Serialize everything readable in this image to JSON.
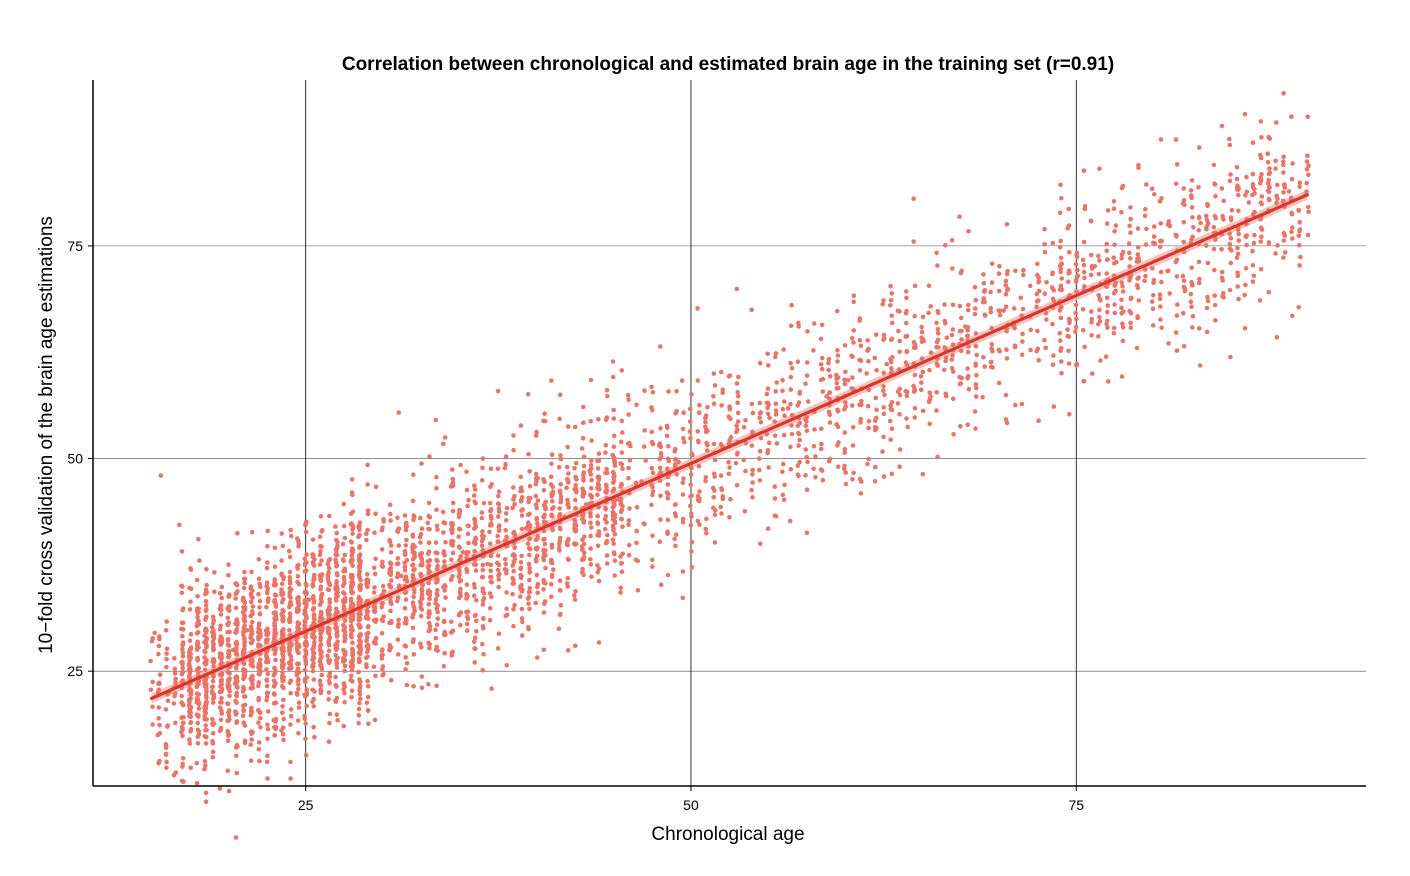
{
  "chart_data": {
    "type": "scatter",
    "title": "Correlation between chronological and estimated brain age in the training set (r=0.91)",
    "xlabel": "Chronological age",
    "ylabel": "10−fold cross validation of the brain age estimations",
    "xlim": [
      11.2,
      93.8
    ],
    "ylim": [
      11.5,
      94.5
    ],
    "x_ticks": [
      25,
      50,
      75
    ],
    "y_ticks": [
      25,
      50,
      75
    ],
    "x_tick_labels": [
      "25",
      "50",
      "75"
    ],
    "y_tick_labels": [
      "25",
      "50",
      "75"
    ],
    "grid": true,
    "point_color": "#e8756a",
    "line_color": "#d7372c",
    "band_color": "#f2b5ae",
    "correlation_r": 0.91,
    "fit_line": {
      "x": [
        15,
        90
      ],
      "y": [
        21.8,
        81.0
      ]
    },
    "points_summary": {
      "n_visible_approx": 4000,
      "x_range": [
        15,
        90
      ],
      "noise_sd_approx": 5.5,
      "description_note": "dense cloud of points around the regression line"
    },
    "series": [
      {
        "kind": "points",
        "x": [
          15.2,
          15.6,
          15.4,
          16.8,
          16.2,
          17.5,
          18.1,
          19.0,
          20.3,
          21.2,
          22.0,
          23.1,
          24.4,
          25.2,
          26.1,
          27.0,
          28.5,
          30.0,
          31.2,
          32.6,
          34.0,
          35.2,
          36.8,
          38.0,
          39.3,
          40.5,
          41.8,
          43.2,
          44.5,
          45.3,
          46.8,
          48.0,
          49.2,
          50.1,
          51.5,
          52.6,
          54.0,
          55.1,
          56.3,
          57.6,
          58.8,
          60.2,
          61.4,
          62.7,
          64.0,
          65.1,
          66.6,
          67.8,
          69.1,
          70.3,
          71.4,
          72.6,
          74.0,
          75.1,
          76.2,
          77.6,
          79.0,
          80.1,
          81.5,
          82.6,
          84.0,
          85.1,
          86.2,
          87.5,
          88.8,
          89.9
        ],
        "y": [
          29.5,
          48.0,
          17.5,
          42.2,
          22.6,
          24.1,
          38.0,
          21.3,
          27.5,
          29.8,
          25.2,
          31.1,
          28.7,
          33.4,
          30.0,
          31.9,
          34.8,
          33.0,
          36.2,
          35.1,
          37.9,
          39.0,
          37.6,
          40.2,
          41.8,
          42.0,
          43.1,
          44.6,
          46.0,
          45.2,
          47.3,
          48.9,
          49.6,
          50.4,
          51.7,
          52.5,
          53.0,
          54.8,
          55.9,
          56.7,
          57.3,
          59.2,
          60.0,
          61.1,
          62.6,
          63.8,
          64.2,
          65.5,
          66.8,
          67.4,
          68.9,
          69.7,
          70.3,
          71.5,
          72.6,
          73.1,
          74.0,
          75.3,
          76.1,
          77.2,
          78.5,
          79.2,
          80.1,
          80.5,
          81.4,
          81.0
        ]
      }
    ]
  }
}
